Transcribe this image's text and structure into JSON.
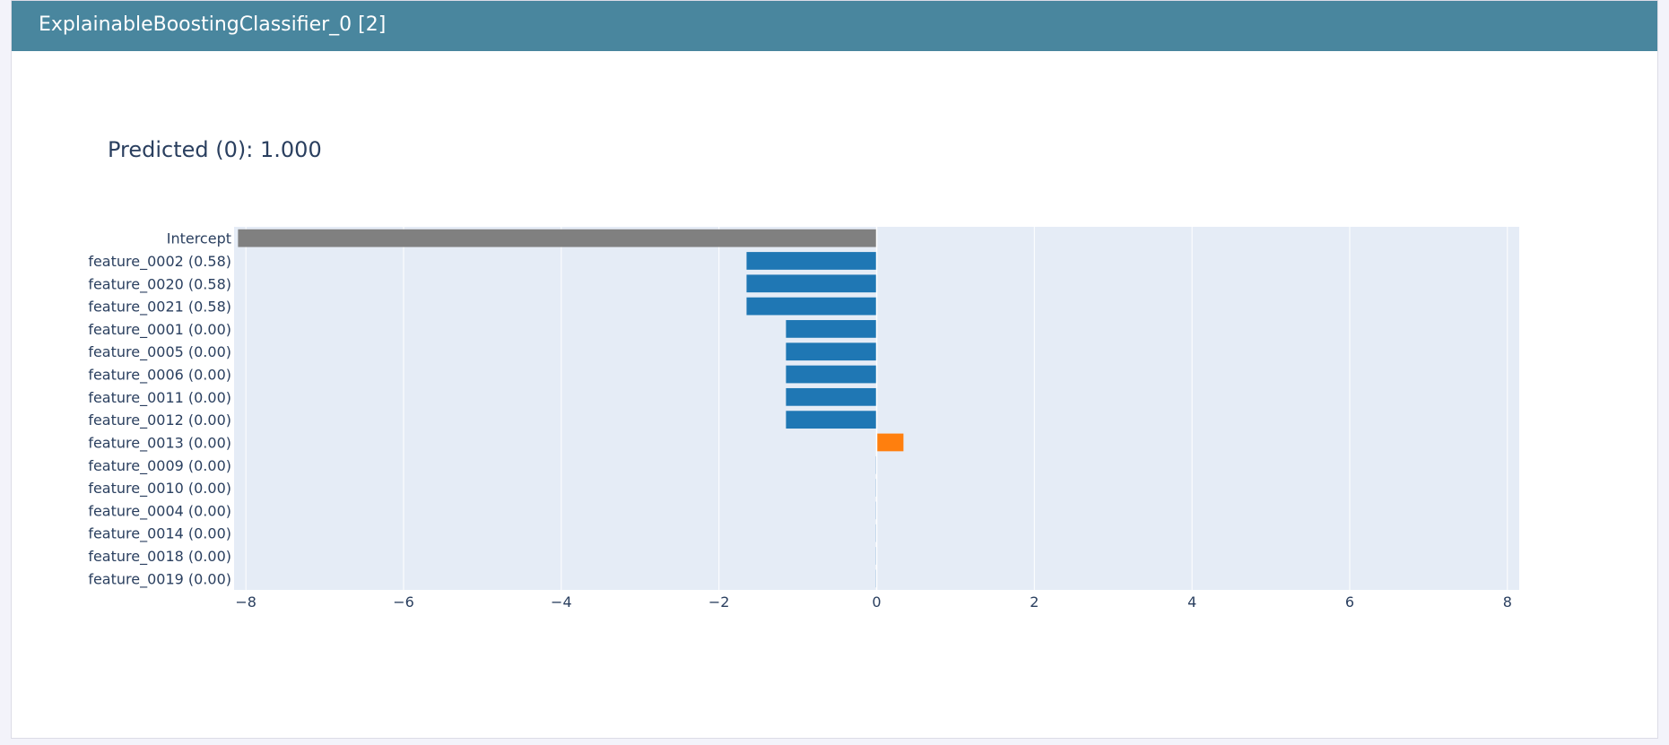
{
  "panel": {
    "title": "ExplainableBoostingClassifier_0 [2]",
    "header_color": "#49869e"
  },
  "chart_data": {
    "type": "bar",
    "orientation": "horizontal",
    "title": "Predicted (0): 1.000",
    "xlabel": "",
    "ylabel": "",
    "xlim": [
      -8.15,
      8.15
    ],
    "x_ticks": [
      -8,
      -6,
      -4,
      -2,
      0,
      2,
      4,
      6,
      8
    ],
    "x_tick_labels": [
      "−8",
      "−6",
      "−4",
      "−2",
      "0",
      "2",
      "4",
      "6",
      "8"
    ],
    "grid": true,
    "categories": [
      "Intercept",
      "feature_0002 (0.58)",
      "feature_0020 (0.58)",
      "feature_0021 (0.58)",
      "feature_0001 (0.00)",
      "feature_0005 (0.00)",
      "feature_0006 (0.00)",
      "feature_0011 (0.00)",
      "feature_0012 (0.00)",
      "feature_0013 (0.00)",
      "feature_0009 (0.00)",
      "feature_0010 (0.00)",
      "feature_0004 (0.00)",
      "feature_0014 (0.00)",
      "feature_0018 (0.00)",
      "feature_0019 (0.00)"
    ],
    "values": [
      -8.1,
      -1.65,
      -1.65,
      -1.65,
      -1.15,
      -1.15,
      -1.15,
      -1.15,
      -1.15,
      0.34,
      -0.01,
      -0.01,
      -0.01,
      -0.01,
      -0.01,
      -0.01
    ],
    "bar_colors": {
      "intercept": "#808080",
      "negative": "#1f77b4",
      "positive": "#ff7f0e"
    },
    "plot_background": "#e5ecf6",
    "grid_color": "#ffffff"
  }
}
